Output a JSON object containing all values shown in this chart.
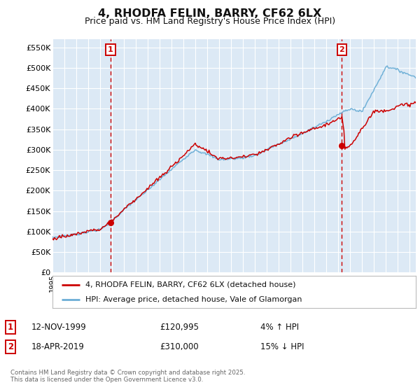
{
  "title": "4, RHODFA FELIN, BARRY, CF62 6LX",
  "subtitle": "Price paid vs. HM Land Registry's House Price Index (HPI)",
  "ylabel_ticks": [
    "£0",
    "£50K",
    "£100K",
    "£150K",
    "£200K",
    "£250K",
    "£300K",
    "£350K",
    "£400K",
    "£450K",
    "£500K",
    "£550K"
  ],
  "ytick_values": [
    0,
    50000,
    100000,
    150000,
    200000,
    250000,
    300000,
    350000,
    400000,
    450000,
    500000,
    550000
  ],
  "ylim": [
    0,
    570000
  ],
  "xlim_start": 1995.0,
  "xlim_end": 2025.5,
  "sale1_x": 1999.87,
  "sale1_y": 120995,
  "sale2_x": 2019.3,
  "sale2_y": 310000,
  "sale1_label": "12-NOV-1999",
  "sale1_price": "£120,995",
  "sale1_hpi": "4% ↑ HPI",
  "sale2_label": "18-APR-2019",
  "sale2_price": "£310,000",
  "sale2_hpi": "15% ↓ HPI",
  "legend_line1": "4, RHODFA FELIN, BARRY, CF62 6LX (detached house)",
  "legend_line2": "HPI: Average price, detached house, Vale of Glamorgan",
  "footer": "Contains HM Land Registry data © Crown copyright and database right 2025.\nThis data is licensed under the Open Government Licence v3.0.",
  "hpi_color": "#6baed6",
  "price_color": "#cc0000",
  "bg_plot": "#dce9f5",
  "bg_fig": "#ffffff",
  "grid_color": "#ffffff",
  "dashed_color": "#cc0000"
}
